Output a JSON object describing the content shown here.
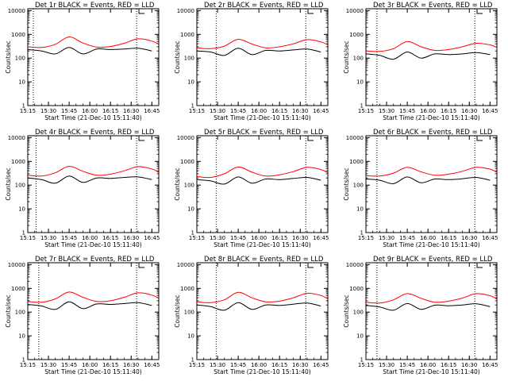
{
  "colors": {
    "background": "#ffffff",
    "axis": "#000000",
    "events": "#000000",
    "lld": "#ff0000"
  },
  "chart_data": [
    {
      "type": "line",
      "title": "Det 1r BLACK = Events, RED = LLD",
      "xlabel": "Start Time (21-Dec-10 15:11:40)",
      "ylabel": "Counts/sec",
      "yscale": "log",
      "ylim": [
        1,
        12000
      ],
      "xlim": [
        "15:15",
        "16:50"
      ],
      "x_tick_labels": [
        "15:15",
        "15:30",
        "15:45",
        "16:00",
        "16:15",
        "16:30",
        "16:45"
      ],
      "y_tick_labels": [
        "1",
        "10",
        "100",
        "1000",
        "10000"
      ],
      "marker_lines": [
        "15:19",
        "16:34"
      ],
      "series": [
        {
          "name": "RED = LLD",
          "color": "#ff0000",
          "x": [
            "15:15",
            "15:25",
            "15:35",
            "15:45",
            "15:55",
            "16:05",
            "16:15",
            "16:25",
            "16:35",
            "16:45",
            "16:50"
          ],
          "values": [
            300,
            280,
            380,
            780,
            430,
            290,
            310,
            420,
            650,
            520,
            380
          ]
        },
        {
          "name": "BLACK = Events",
          "color": "#000000",
          "x": [
            "15:15",
            "15:25",
            "15:35",
            "15:45",
            "15:55",
            "16:05",
            "16:15",
            "16:25",
            "16:35",
            "16:45"
          ],
          "values": [
            230,
            200,
            150,
            280,
            150,
            240,
            230,
            240,
            260,
            200
          ]
        }
      ]
    },
    {
      "type": "line",
      "title": "Det 2r BLACK = Events, RED = LLD",
      "xlabel": "Start Time (21-Dec-10 15:11:40)",
      "ylabel": "Counts/sec",
      "yscale": "log",
      "ylim": [
        1,
        12000
      ],
      "xlim": [
        "15:15",
        "16:50"
      ],
      "x_tick_labels": [
        "15:15",
        "15:30",
        "15:45",
        "16:00",
        "16:15",
        "16:30",
        "16:45"
      ],
      "y_tick_labels": [
        "1",
        "10",
        "100",
        "1000",
        "10000"
      ],
      "marker_lines": [
        "15:29",
        "16:34"
      ],
      "series": [
        {
          "name": "RED = LLD",
          "color": "#ff0000",
          "x": [
            "15:15",
            "15:25",
            "15:35",
            "15:45",
            "15:55",
            "16:05",
            "16:15",
            "16:25",
            "16:35",
            "16:45",
            "16:50"
          ],
          "values": [
            270,
            250,
            320,
            620,
            390,
            270,
            300,
            400,
            600,
            480,
            360
          ]
        },
        {
          "name": "BLACK = Events",
          "color": "#000000",
          "x": [
            "15:15",
            "15:25",
            "15:35",
            "15:45",
            "15:55",
            "16:05",
            "16:15",
            "16:25",
            "16:35",
            "16:45"
          ],
          "values": [
            200,
            180,
            130,
            260,
            140,
            210,
            200,
            220,
            240,
            180
          ]
        }
      ]
    },
    {
      "type": "line",
      "title": "Det 3r BLACK = Events, RED = LLD",
      "xlabel": "Start Time (21-Dec-10 15:11:40)",
      "ylabel": "Counts/sec",
      "yscale": "log",
      "ylim": [
        1,
        12000
      ],
      "xlim": [
        "15:15",
        "16:50"
      ],
      "x_tick_labels": [
        "15:15",
        "15:30",
        "15:45",
        "16:00",
        "16:15",
        "16:30",
        "16:45"
      ],
      "y_tick_labels": [
        "1",
        "10",
        "100",
        "1000",
        "10000"
      ],
      "marker_lines": [
        "15:23",
        "16:34"
      ],
      "series": [
        {
          "name": "RED = LLD",
          "color": "#ff0000",
          "x": [
            "15:15",
            "15:25",
            "15:35",
            "15:45",
            "15:55",
            "16:05",
            "16:15",
            "16:25",
            "16:35",
            "16:45",
            "16:50"
          ],
          "values": [
            200,
            190,
            250,
            500,
            300,
            210,
            230,
            300,
            420,
            360,
            280
          ]
        },
        {
          "name": "BLACK = Events",
          "color": "#000000",
          "x": [
            "15:15",
            "15:25",
            "15:35",
            "15:45",
            "15:55",
            "16:05",
            "16:15",
            "16:25",
            "16:35",
            "16:45"
          ],
          "values": [
            150,
            130,
            90,
            180,
            100,
            150,
            140,
            150,
            170,
            140
          ]
        }
      ]
    },
    {
      "type": "line",
      "title": "Det 4r BLACK = Events, RED = LLD",
      "xlabel": "Start Time (21-Dec-10 15:11:40)",
      "ylabel": "Counts/sec",
      "yscale": "log",
      "ylim": [
        1,
        12000
      ],
      "xlim": [
        "15:15",
        "16:50"
      ],
      "x_tick_labels": [
        "15:15",
        "15:30",
        "15:45",
        "16:00",
        "16:15",
        "16:30",
        "16:45"
      ],
      "y_tick_labels": [
        "1",
        "10",
        "100",
        "1000",
        "10000"
      ],
      "marker_lines": [
        "15:21",
        "16:34"
      ],
      "series": [
        {
          "name": "RED = LLD",
          "color": "#ff0000",
          "x": [
            "15:15",
            "15:25",
            "15:35",
            "15:45",
            "15:55",
            "16:05",
            "16:15",
            "16:25",
            "16:35",
            "16:45",
            "16:50"
          ],
          "values": [
            260,
            240,
            330,
            620,
            380,
            260,
            290,
            400,
            600,
            480,
            340
          ]
        },
        {
          "name": "BLACK = Events",
          "color": "#000000",
          "x": [
            "15:15",
            "15:25",
            "15:35",
            "15:45",
            "15:55",
            "16:05",
            "16:15",
            "16:25",
            "16:35",
            "16:45"
          ],
          "values": [
            200,
            170,
            120,
            240,
            130,
            200,
            190,
            210,
            220,
            170
          ]
        }
      ]
    },
    {
      "type": "line",
      "title": "Det 5r BLACK = Events, RED = LLD",
      "xlabel": "Start Time (21-Dec-10 15:11:40)",
      "ylabel": "Counts/sec",
      "yscale": "log",
      "ylim": [
        1,
        12000
      ],
      "xlim": [
        "15:15",
        "16:50"
      ],
      "x_tick_labels": [
        "15:15",
        "15:30",
        "15:45",
        "16:00",
        "16:15",
        "16:30",
        "16:45"
      ],
      "y_tick_labels": [
        "1",
        "10",
        "100",
        "1000",
        "10000"
      ],
      "marker_lines": [
        "15:29",
        "16:34"
      ],
      "series": [
        {
          "name": "RED = LLD",
          "color": "#ff0000",
          "x": [
            "15:15",
            "15:25",
            "15:35",
            "15:45",
            "15:55",
            "16:05",
            "16:15",
            "16:25",
            "16:35",
            "16:45",
            "16:50"
          ],
          "values": [
            230,
            210,
            300,
            580,
            350,
            240,
            270,
            370,
            560,
            450,
            330
          ]
        },
        {
          "name": "BLACK = Events",
          "color": "#000000",
          "x": [
            "15:15",
            "15:25",
            "15:35",
            "15:45",
            "15:55",
            "16:05",
            "16:15",
            "16:25",
            "16:35",
            "16:45"
          ],
          "values": [
            170,
            150,
            110,
            220,
            120,
            180,
            170,
            190,
            210,
            160
          ]
        }
      ]
    },
    {
      "type": "line",
      "title": "Det 6r BLACK = Events, RED = LLD",
      "xlabel": "Start Time (21-Dec-10 15:11:40)",
      "ylabel": "Counts/sec",
      "yscale": "log",
      "ylim": [
        1,
        12000
      ],
      "xlim": [
        "15:15",
        "16:50"
      ],
      "x_tick_labels": [
        "15:15",
        "15:30",
        "15:45",
        "16:00",
        "16:15",
        "16:30",
        "16:45"
      ],
      "y_tick_labels": [
        "1",
        "10",
        "100",
        "1000",
        "10000"
      ],
      "marker_lines": [
        "15:23",
        "16:34"
      ],
      "series": [
        {
          "name": "RED = LLD",
          "color": "#ff0000",
          "x": [
            "15:15",
            "15:25",
            "15:35",
            "15:45",
            "15:55",
            "16:05",
            "16:15",
            "16:25",
            "16:35",
            "16:45",
            "16:50"
          ],
          "values": [
            250,
            240,
            320,
            560,
            360,
            260,
            290,
            380,
            560,
            470,
            340
          ]
        },
        {
          "name": "BLACK = Events",
          "color": "#000000",
          "x": [
            "15:15",
            "15:25",
            "15:35",
            "15:45",
            "15:55",
            "16:05",
            "16:15",
            "16:25",
            "16:35",
            "16:45"
          ],
          "values": [
            180,
            160,
            115,
            220,
            125,
            180,
            170,
            185,
            210,
            160
          ]
        }
      ]
    },
    {
      "type": "line",
      "title": "Det 7r BLACK = Events, RED = LLD",
      "xlabel": "Start Time (21-Dec-10 15:11:40)",
      "ylabel": "Counts/sec",
      "yscale": "log",
      "ylim": [
        1,
        12000
      ],
      "xlim": [
        "15:15",
        "16:50"
      ],
      "x_tick_labels": [
        "15:15",
        "15:30",
        "15:45",
        "16:00",
        "16:15",
        "16:30",
        "16:45"
      ],
      "y_tick_labels": [
        "1",
        "10",
        "100",
        "1000",
        "10000"
      ],
      "marker_lines": [
        "15:23",
        "16:34"
      ],
      "series": [
        {
          "name": "RED = LLD",
          "color": "#ff0000",
          "x": [
            "15:15",
            "15:25",
            "15:35",
            "15:45",
            "15:55",
            "16:05",
            "16:15",
            "16:25",
            "16:35",
            "16:45",
            "16:50"
          ],
          "values": [
            280,
            260,
            360,
            700,
            420,
            280,
            300,
            420,
            650,
            520,
            380
          ]
        },
        {
          "name": "BLACK = Events",
          "color": "#000000",
          "x": [
            "15:15",
            "15:25",
            "15:35",
            "15:45",
            "15:55",
            "16:05",
            "16:15",
            "16:25",
            "16:35",
            "16:45"
          ],
          "values": [
            210,
            180,
            130,
            270,
            140,
            220,
            210,
            230,
            250,
            190
          ]
        }
      ]
    },
    {
      "type": "line",
      "title": "Det 8r BLACK = Events, RED = LLD",
      "xlabel": "Start Time (21-Dec-10 15:11:40)",
      "ylabel": "Counts/sec",
      "yscale": "log",
      "ylim": [
        1,
        12000
      ],
      "xlim": [
        "15:15",
        "16:50"
      ],
      "x_tick_labels": [
        "15:15",
        "15:30",
        "15:45",
        "16:00",
        "16:15",
        "16:30",
        "16:45"
      ],
      "y_tick_labels": [
        "1",
        "10",
        "100",
        "1000",
        "10000"
      ],
      "marker_lines": [
        "15:29",
        "16:34"
      ],
      "series": [
        {
          "name": "RED = LLD",
          "color": "#ff0000",
          "x": [
            "15:15",
            "15:25",
            "15:35",
            "15:45",
            "15:55",
            "16:05",
            "16:15",
            "16:25",
            "16:35",
            "16:45",
            "16:50"
          ],
          "values": [
            270,
            250,
            330,
            680,
            400,
            270,
            290,
            400,
            620,
            500,
            360
          ]
        },
        {
          "name": "BLACK = Events",
          "color": "#000000",
          "x": [
            "15:15",
            "15:25",
            "15:35",
            "15:45",
            "15:55",
            "16:05",
            "16:15",
            "16:25",
            "16:35",
            "16:45"
          ],
          "values": [
            200,
            170,
            120,
            250,
            130,
            200,
            190,
            215,
            240,
            180
          ]
        }
      ]
    },
    {
      "type": "line",
      "title": "Det 9r BLACK = Events, RED = LLD",
      "xlabel": "Start Time (21-Dec-10 15:11:40)",
      "ylabel": "Counts/sec",
      "yscale": "log",
      "ylim": [
        1,
        12000
      ],
      "xlim": [
        "15:15",
        "16:50"
      ],
      "x_tick_labels": [
        "15:15",
        "15:30",
        "15:45",
        "16:00",
        "16:15",
        "16:30",
        "16:45"
      ],
      "y_tick_labels": [
        "1",
        "10",
        "100",
        "1000",
        "10000"
      ],
      "marker_lines": [
        "15:23",
        "16:34"
      ],
      "series": [
        {
          "name": "RED = LLD",
          "color": "#ff0000",
          "x": [
            "15:15",
            "15:25",
            "15:35",
            "15:45",
            "15:55",
            "16:05",
            "16:15",
            "16:25",
            "16:35",
            "16:45",
            "16:50"
          ],
          "values": [
            260,
            240,
            330,
            600,
            380,
            260,
            290,
            390,
            600,
            490,
            350
          ]
        },
        {
          "name": "BLACK = Events",
          "color": "#000000",
          "x": [
            "15:15",
            "15:25",
            "15:35",
            "15:45",
            "15:55",
            "16:05",
            "16:15",
            "16:25",
            "16:35",
            "16:45"
          ],
          "values": [
            190,
            165,
            120,
            230,
            130,
            195,
            185,
            200,
            225,
            170
          ]
        }
      ]
    }
  ]
}
